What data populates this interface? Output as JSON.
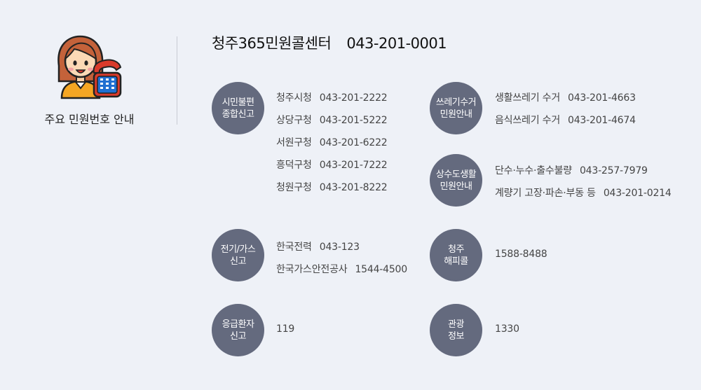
{
  "sidebar": {
    "title": "주요 민원번호 안내"
  },
  "header": {
    "title": "청주365민원콜센터",
    "number": "043-201-0001"
  },
  "groups": [
    {
      "category": [
        "시민불편",
        "종합신고"
      ],
      "entries": [
        {
          "name": "청주시청",
          "number": "043-201-2222"
        },
        {
          "name": "상당구청",
          "number": "043-201-5222"
        },
        {
          "name": "서원구청",
          "number": "043-201-6222"
        },
        {
          "name": "흥덕구청",
          "number": "043-201-7222"
        },
        {
          "name": "청원구청",
          "number": "043-201-8222"
        }
      ]
    },
    {
      "category": [
        "전기/가스",
        "신고"
      ],
      "entries": [
        {
          "name": "한국전력",
          "number": "043-123"
        },
        {
          "name": "한국가스안전공사",
          "number": "1544-4500"
        }
      ]
    },
    {
      "category": [
        "응급환자",
        "신고"
      ],
      "entries": [
        {
          "name": "",
          "number": "119"
        }
      ]
    },
    {
      "category": [
        "쓰레기수거",
        "민원안내"
      ],
      "entries": [
        {
          "name": "생활쓰레기 수거",
          "number": "043-201-4663"
        },
        {
          "name": "음식쓰레기 수거",
          "number": "043-201-4674"
        }
      ]
    },
    {
      "category": [
        "상수도생활",
        "민원안내"
      ],
      "entries": [
        {
          "name": "단수·누수·출수불량",
          "number": "043-257-7979"
        },
        {
          "name": "계량기 고장·파손·부동 등",
          "number": "043-201-0214"
        }
      ]
    },
    {
      "category": [
        "청주",
        "해피콜"
      ],
      "entries": [
        {
          "name": "",
          "number": "1588-8488"
        }
      ]
    },
    {
      "category": [
        "관광",
        "정보"
      ],
      "entries": [
        {
          "name": "",
          "number": "1330"
        }
      ]
    }
  ],
  "icons": {
    "avatar": "operator-with-phone-icon"
  },
  "colors": {
    "background": "#eef1f7",
    "badge": "#646a7e",
    "hair": "#c4623a",
    "phone": "#d93a2b",
    "keypad": "#1f6fd1"
  }
}
